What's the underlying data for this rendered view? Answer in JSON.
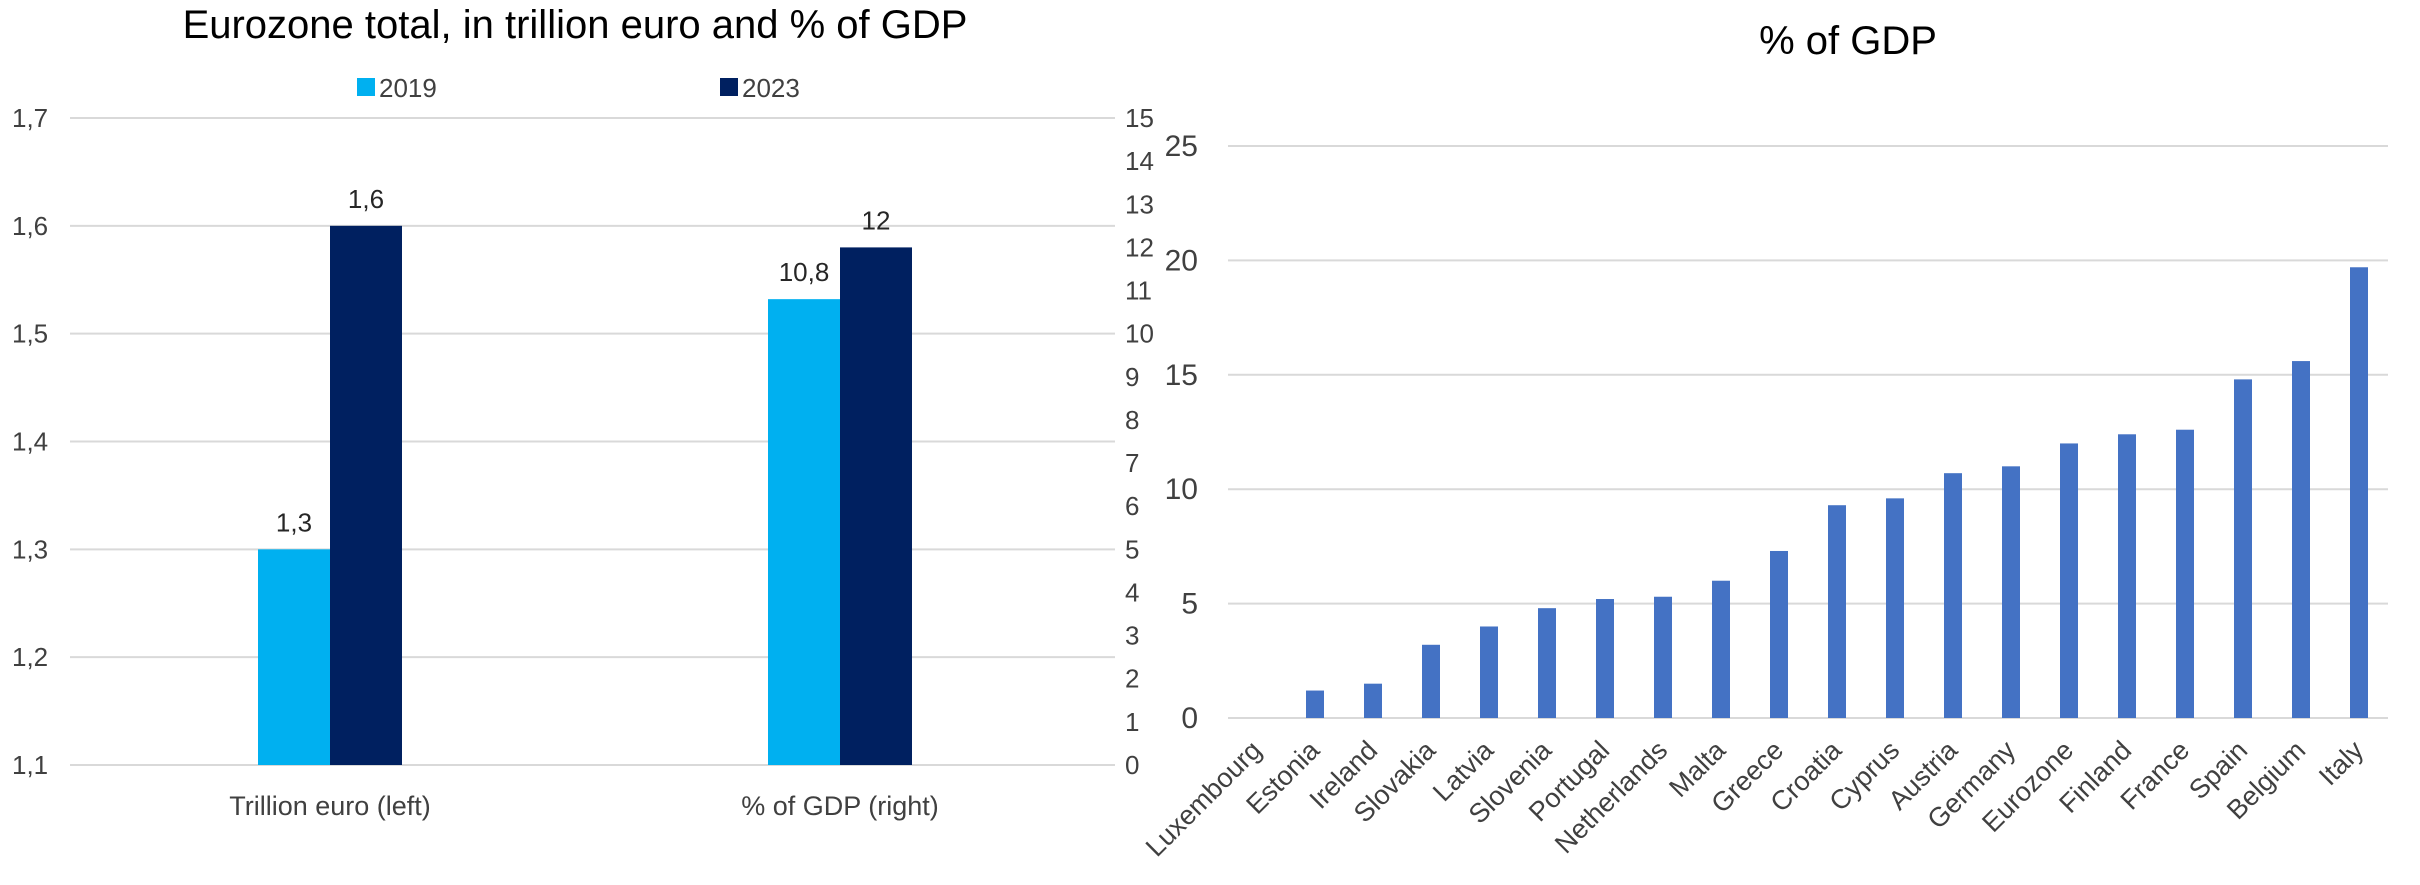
{
  "chart_data": [
    {
      "type": "bar",
      "title": "Eurozone total, in trillion euro and % of GDP",
      "categories": [
        "Trillion euro (left)",
        "% of GDP (right)"
      ],
      "series": [
        {
          "name": "2019",
          "values": [
            1.3,
            10.8
          ],
          "labels": [
            "1,3",
            "10,8"
          ],
          "color": "#00b0f0"
        },
        {
          "name": "2023",
          "values": [
            1.6,
            12
          ],
          "labels": [
            "1,6",
            "12"
          ],
          "color": "#002060"
        }
      ],
      "left_axis": {
        "ylim": [
          1.1,
          1.7
        ],
        "ticks": [
          "1,1",
          "1,2",
          "1,3",
          "1,4",
          "1,5",
          "1,6",
          "1,7"
        ]
      },
      "right_axis": {
        "ylim": [
          0,
          15
        ],
        "ticks": [
          "0",
          "1",
          "2",
          "3",
          "4",
          "5",
          "6",
          "7",
          "8",
          "9",
          "10",
          "11",
          "12",
          "13",
          "14",
          "15"
        ]
      },
      "legend": "top",
      "grid": true
    },
    {
      "type": "bar",
      "title": "% of GDP",
      "categories": [
        "Luxembourg",
        "Estonia",
        "Ireland",
        "Slovakia",
        "Latvia",
        "Slovenia",
        "Portugal",
        "Netherlands",
        "Malta",
        "Greece",
        "Croatia",
        "Cyprus",
        "Austria",
        "Germany",
        "Eurozone",
        "Finland",
        "France",
        "Spain",
        "Belgium",
        "Italy"
      ],
      "values": [
        0,
        1.2,
        1.5,
        3.2,
        4.0,
        4.8,
        5.2,
        5.3,
        6.0,
        7.3,
        9.3,
        9.6,
        10.7,
        11.0,
        12.0,
        12.4,
        12.6,
        14.8,
        15.6,
        19.7
      ],
      "ylim": [
        0,
        25
      ],
      "ticks": [
        "0",
        "5",
        "10",
        "15",
        "20",
        "25"
      ],
      "color": "#4472c4",
      "grid": true
    }
  ]
}
